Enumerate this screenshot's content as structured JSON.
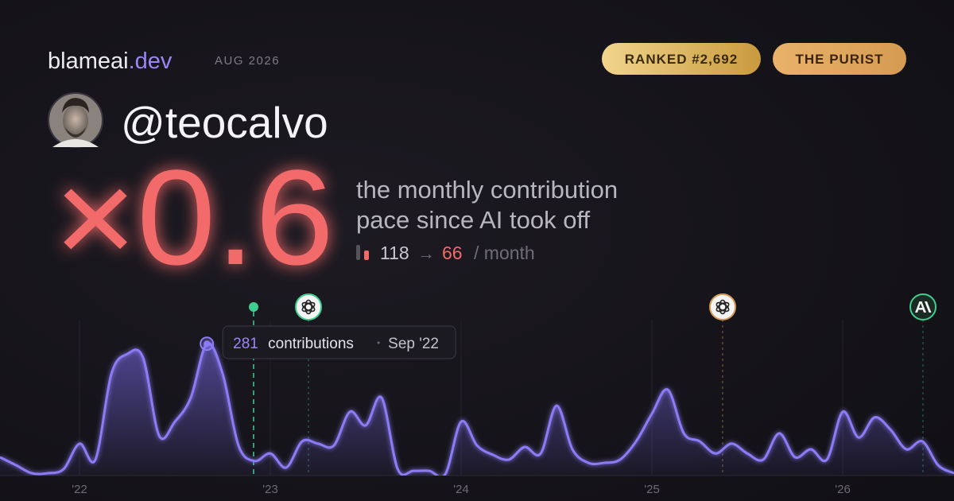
{
  "header": {
    "brand": "blameai",
    "brand_tld": ".dev",
    "period": "AUG 2026",
    "badges": [
      "RANKED #2,692",
      "THE PURIST"
    ]
  },
  "profile": {
    "handle": "@teocalvo"
  },
  "stat": {
    "multiplier": "×0.6",
    "description": [
      "the monthly contribution",
      "pace since AI took off"
    ],
    "before": 118,
    "arrow": "→",
    "after": 66,
    "unit": "/ month"
  },
  "chart_data": {
    "type": "area",
    "color": "#8b7cf6",
    "x": [
      2021.583,
      2021.667,
      2021.75,
      2021.833,
      2021.917,
      2022,
      2022.083,
      2022.167,
      2022.25,
      2022.333,
      2022.417,
      2022.5,
      2022.583,
      2022.667,
      2022.75,
      2022.833,
      2022.917,
      2023,
      2023.083,
      2023.167,
      2023.25,
      2023.333,
      2023.417,
      2023.5,
      2023.583,
      2023.667,
      2023.75,
      2023.833,
      2023.917,
      2024,
      2024.083,
      2024.167,
      2024.25,
      2024.333,
      2024.417,
      2024.5,
      2024.583,
      2024.667,
      2024.75,
      2024.833,
      2024.917,
      2025,
      2025.083,
      2025.167,
      2025.25,
      2025.333,
      2025.417,
      2025.5,
      2025.583,
      2025.667,
      2025.75,
      2025.833,
      2025.917,
      2026,
      2026.083,
      2026.167,
      2026.25,
      2026.333,
      2026.417,
      2026.5,
      2026.583
    ],
    "values": [
      39,
      22,
      5,
      5,
      14,
      68,
      34,
      217,
      259,
      251,
      85,
      115,
      166,
      281,
      217,
      64,
      31,
      47,
      17,
      73,
      68,
      64,
      136,
      107,
      166,
      14,
      10,
      10,
      3,
      115,
      64,
      44,
      34,
      61,
      47,
      149,
      56,
      27,
      27,
      34,
      73,
      132,
      183,
      90,
      73,
      47,
      68,
      47,
      34,
      90,
      39,
      56,
      34,
      136,
      81,
      124,
      98,
      56,
      73,
      22,
      5
    ],
    "xlim": [
      2021.583,
      2026.583
    ],
    "ylim": [
      0,
      300
    ],
    "xticks": [
      {
        "value": 2022,
        "label": "'22"
      },
      {
        "value": 2023,
        "label": "'23"
      },
      {
        "value": 2024,
        "label": "'24"
      },
      {
        "value": 2025,
        "label": "'25"
      },
      {
        "value": 2026,
        "label": "'26"
      }
    ],
    "grid": true,
    "tooltip": {
      "index": 13,
      "unit": "contributions",
      "date": "Sep '22"
    }
  }
}
